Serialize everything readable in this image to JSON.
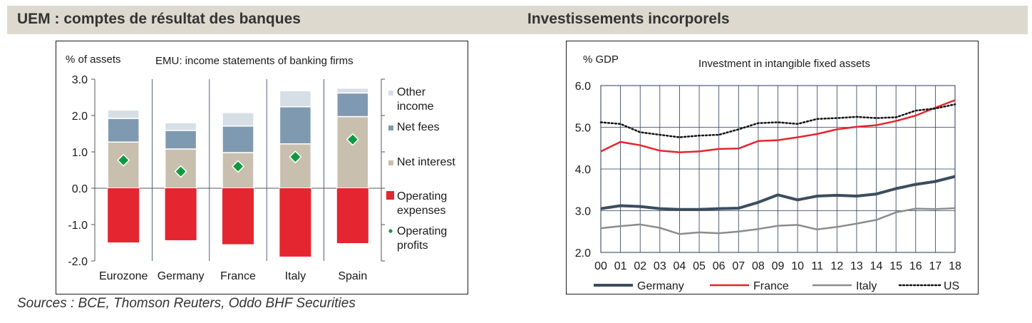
{
  "left": {
    "header": "UEM : comptes de résultat des banques",
    "chart_data": {
      "type": "bar",
      "stacked": true,
      "title": "EMU: income statements of banking firms",
      "ylabel": "% of assets",
      "ylim": [
        -2.0,
        3.0
      ],
      "yticks": [
        "3.0",
        "2.0",
        "1.0",
        "0.0",
        "-1.0",
        "-2.0"
      ],
      "categories": [
        "Eurozone",
        "Germany",
        "France",
        "Italy",
        "Spain"
      ],
      "series": [
        {
          "name": "Other income",
          "color": "#d6dee6",
          "values": [
            0.23,
            0.21,
            0.37,
            0.44,
            0.13
          ]
        },
        {
          "name": "Net fees",
          "color": "#7f9ab0",
          "values": [
            0.65,
            0.51,
            0.73,
            1.02,
            0.65
          ]
        },
        {
          "name": "Net interest",
          "color": "#c9bfae",
          "values": [
            1.27,
            1.08,
            0.98,
            1.22,
            1.97
          ]
        },
        {
          "name": "Operating expenses",
          "color": "#e3262f",
          "values": [
            -1.49,
            -1.43,
            -1.54,
            -1.88,
            -1.51
          ]
        },
        {
          "name": "Operating profits",
          "color": "#109a3f",
          "values": [
            0.77,
            0.46,
            0.6,
            0.86,
            1.34
          ]
        }
      ],
      "legend": [
        {
          "label": "Other\nincome",
          "color": "#d6dee6",
          "shape": "square"
        },
        {
          "label": "Net fees",
          "color": "#7f9ab0",
          "shape": "square"
        },
        {
          "label": "Net interest",
          "color": "#c9bfae",
          "shape": "square"
        },
        {
          "label": "Operating\nexpenses",
          "color": "#e3262f",
          "shape": "bigsquare"
        },
        {
          "label": "Operating\nprofits",
          "color": "#109a3f",
          "shape": "dot"
        }
      ],
      "legend_position": "right"
    }
  },
  "right": {
    "header": "Investissements incorporels",
    "chart_data": {
      "type": "line",
      "title": "Investment in intangible fixed assets",
      "ylabel": "% GDP",
      "ylim": [
        2.0,
        6.0
      ],
      "yticks": [
        "6.0",
        "5.0",
        "4.0",
        "3.0",
        "2.0"
      ],
      "x": [
        "00",
        "01",
        "02",
        "03",
        "04",
        "05",
        "06",
        "07",
        "08",
        "09",
        "10",
        "11",
        "12",
        "13",
        "14",
        "15",
        "16",
        "17",
        "18"
      ],
      "series": [
        {
          "name": "Germany",
          "color": "#3b4d5e",
          "width": 4,
          "dash": "none",
          "values": [
            3.05,
            3.12,
            3.1,
            3.05,
            3.03,
            3.03,
            3.05,
            3.06,
            3.2,
            3.38,
            3.26,
            3.35,
            3.37,
            3.35,
            3.4,
            3.53,
            3.63,
            3.7,
            3.82
          ]
        },
        {
          "name": "France",
          "color": "#e3262f",
          "width": 2.5,
          "dash": "none",
          "values": [
            4.42,
            4.65,
            4.57,
            4.44,
            4.4,
            4.42,
            4.48,
            4.49,
            4.67,
            4.69,
            4.76,
            4.84,
            4.95,
            5.01,
            5.05,
            5.15,
            5.28,
            5.47,
            5.65
          ]
        },
        {
          "name": "Italy",
          "color": "#8c8c8c",
          "width": 2.5,
          "dash": "none",
          "values": [
            2.58,
            2.63,
            2.67,
            2.59,
            2.44,
            2.48,
            2.46,
            2.5,
            2.56,
            2.64,
            2.66,
            2.55,
            2.61,
            2.69,
            2.78,
            2.96,
            3.05,
            3.04,
            3.06
          ]
        },
        {
          "name": "US",
          "color": "#111111",
          "width": 2.5,
          "dash": "2,3",
          "values": [
            5.12,
            5.08,
            4.88,
            4.82,
            4.76,
            4.8,
            4.82,
            4.95,
            5.1,
            5.12,
            5.08,
            5.2,
            5.22,
            5.25,
            5.22,
            5.24,
            5.4,
            5.45,
            5.55
          ]
        }
      ],
      "legend_position": "bottom",
      "grid": true
    }
  },
  "sources": "Sources : BCE, Thomson Reuters, Oddo BHF Securities"
}
